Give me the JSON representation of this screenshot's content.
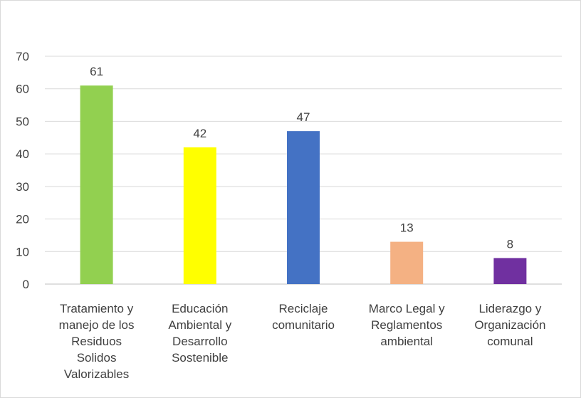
{
  "chart_data": {
    "type": "bar",
    "categories": [
      [
        "Tratamiento y",
        "manejo de los",
        "Residuos",
        "Solidos",
        "Valorizables"
      ],
      [
        "Educación",
        "Ambiental y",
        "Desarrollo",
        "Sostenible"
      ],
      [
        "Reciclaje",
        "comunitario"
      ],
      [
        "Marco Legal y",
        "Reglamentos",
        "ambiental"
      ],
      [
        "Liderazgo y",
        "Organización",
        "comunal"
      ]
    ],
    "values": [
      61,
      42,
      47,
      13,
      8
    ],
    "data_labels": [
      "61",
      "42",
      "47",
      "13",
      "8"
    ],
    "colors": [
      "#92d050",
      "#ffff00",
      "#4472c4",
      "#f4b183",
      "#7030a0"
    ],
    "ylim": [
      0,
      70
    ],
    "yticks": [
      0,
      10,
      20,
      30,
      40,
      50,
      60,
      70
    ],
    "ytick_labels": [
      "0",
      "10",
      "20",
      "30",
      "40",
      "50",
      "60",
      "70"
    ],
    "title": "",
    "xlabel": "",
    "ylabel": "",
    "grid": true,
    "legend": "none"
  }
}
